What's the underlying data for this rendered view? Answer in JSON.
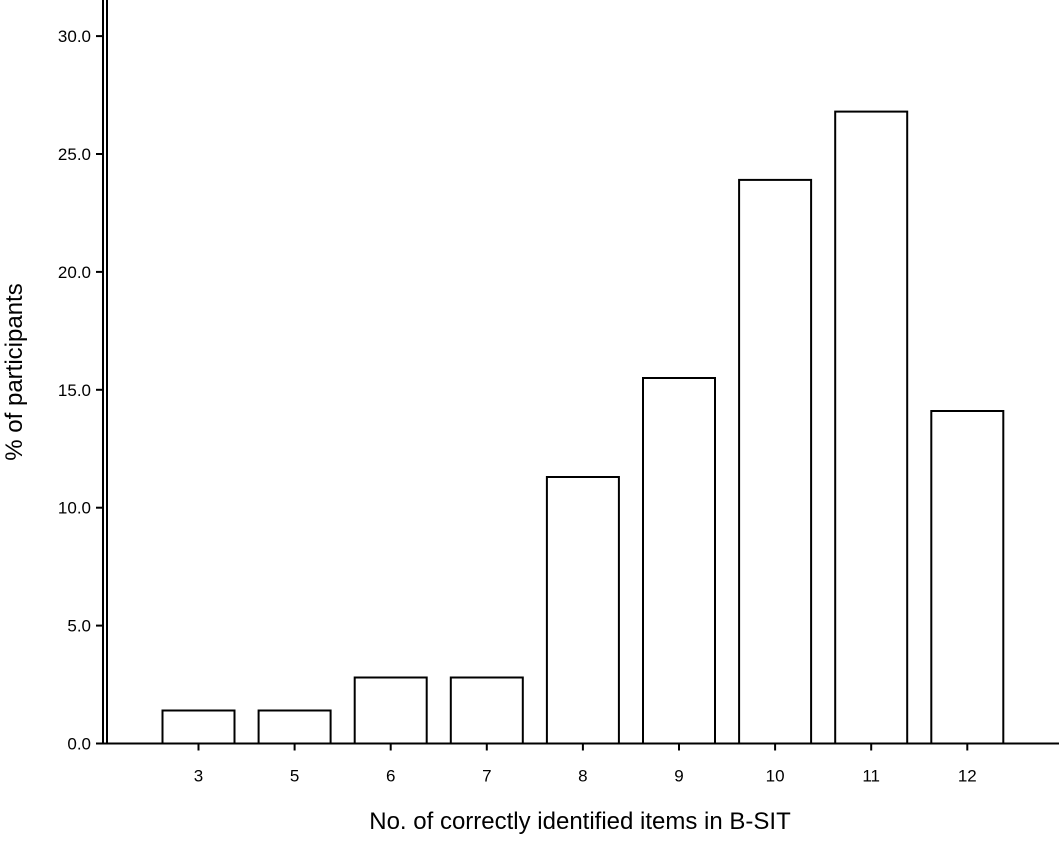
{
  "chart_data": {
    "type": "bar",
    "title": "",
    "xlabel": "No. of correctly identified items in B-SIT",
    "ylabel": "% of participants",
    "categories": [
      "3",
      "5",
      "6",
      "7",
      "8",
      "9",
      "10",
      "11",
      "12"
    ],
    "values": [
      1.4,
      1.4,
      2.8,
      2.8,
      11.3,
      15.5,
      23.9,
      26.8,
      14.1
    ],
    "ylim": [
      0,
      31
    ],
    "yticks": [
      "0.0",
      "5.0",
      "10.0",
      "15.0",
      "20.0",
      "25.0",
      "30.0"
    ],
    "grid": false,
    "legend": "none"
  }
}
